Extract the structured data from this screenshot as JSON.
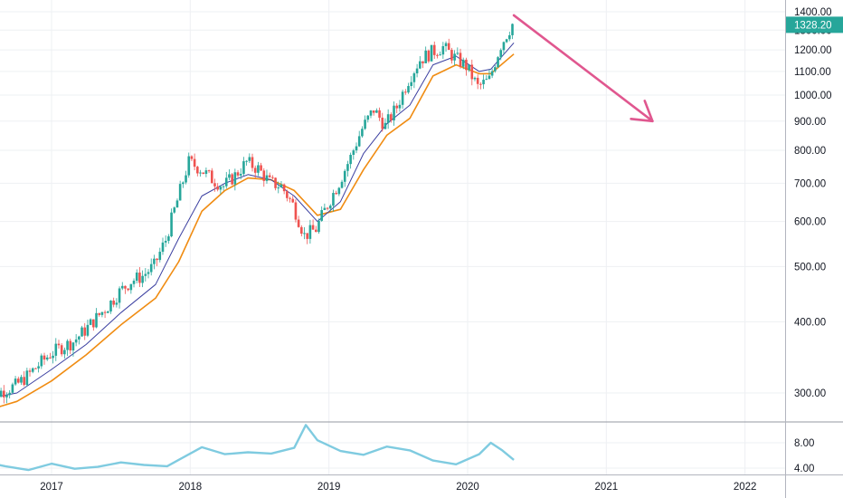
{
  "chart_data": {
    "type": "candlestick",
    "x_axis": {
      "labels": [
        "2017",
        "2018",
        "2019",
        "2020",
        "2021",
        "2022"
      ],
      "range": [
        "2016-07",
        "2022-06"
      ]
    },
    "price_axis": {
      "tick_labels": [
        "300.00",
        "400.00",
        "500.00",
        "600.00",
        "700.00",
        "800.00",
        "900.00",
        "1000.00",
        "1100.00",
        "1200.00",
        "1300.00",
        "1400.00"
      ],
      "ylim": [
        215,
        1435
      ],
      "last_price": "1328.20",
      "last_price_value": 1328.2,
      "scale": "log"
    },
    "indicator_axis": {
      "tick_labels": [
        "4.00",
        "8.00"
      ],
      "ylim": [
        3.2,
        11.2
      ]
    },
    "grid": true,
    "colors": {
      "up_candle": "#26a69a",
      "down_candle": "#ef5350",
      "fast_ma": "#3b3fa0",
      "slow_ma": "#f08c12",
      "indicator_line": "#7fcbe0",
      "arrow": "#e0578f",
      "last_price_badge": "#26a69a"
    },
    "projection_arrow": {
      "from": {
        "date": "2020-05",
        "price": 1380
      },
      "to": {
        "date": "2021-05",
        "price": 900
      }
    },
    "candle_closes": [
      {
        "date": "2016-07",
        "close": 300
      },
      {
        "date": "2016-08",
        "close": 297
      },
      {
        "date": "2016-09",
        "close": 302
      },
      {
        "date": "2016-10",
        "close": 308
      },
      {
        "date": "2016-11",
        "close": 320
      },
      {
        "date": "2016-12",
        "close": 335
      },
      {
        "date": "2017-01",
        "close": 350
      },
      {
        "date": "2017-02",
        "close": 360
      },
      {
        "date": "2017-03",
        "close": 368
      },
      {
        "date": "2017-04",
        "close": 385
      },
      {
        "date": "2017-05",
        "close": 405
      },
      {
        "date": "2017-06",
        "close": 425
      },
      {
        "date": "2017-07",
        "close": 450
      },
      {
        "date": "2017-08",
        "close": 470
      },
      {
        "date": "2017-09",
        "close": 480
      },
      {
        "date": "2017-10",
        "close": 500
      },
      {
        "date": "2017-11",
        "close": 555
      },
      {
        "date": "2017-12",
        "close": 650
      },
      {
        "date": "2018-01",
        "close": 760
      },
      {
        "date": "2018-02",
        "close": 740
      },
      {
        "date": "2018-03",
        "close": 710
      },
      {
        "date": "2018-04",
        "close": 690
      },
      {
        "date": "2018-05",
        "close": 720
      },
      {
        "date": "2018-06",
        "close": 760
      },
      {
        "date": "2018-07",
        "close": 740
      },
      {
        "date": "2018-08",
        "close": 700
      },
      {
        "date": "2018-09",
        "close": 690
      },
      {
        "date": "2018-10",
        "close": 640
      },
      {
        "date": "2018-11",
        "close": 565
      },
      {
        "date": "2018-12",
        "close": 580
      },
      {
        "date": "2019-01",
        "close": 640
      },
      {
        "date": "2019-02",
        "close": 700
      },
      {
        "date": "2019-03",
        "close": 775
      },
      {
        "date": "2019-04",
        "close": 870
      },
      {
        "date": "2019-05",
        "close": 940
      },
      {
        "date": "2019-06",
        "close": 880
      },
      {
        "date": "2019-07",
        "close": 950
      },
      {
        "date": "2019-08",
        "close": 1060
      },
      {
        "date": "2019-09",
        "close": 1150
      },
      {
        "date": "2019-10",
        "close": 1185
      },
      {
        "date": "2019-11",
        "close": 1210
      },
      {
        "date": "2019-12",
        "close": 1160
      },
      {
        "date": "2020-01",
        "close": 1120
      },
      {
        "date": "2020-02",
        "close": 1030
      },
      {
        "date": "2020-03",
        "close": 1060
      },
      {
        "date": "2020-04",
        "close": 1220
      },
      {
        "date": "2020-05",
        "close": 1328
      }
    ],
    "fast_ma": [
      {
        "date": "2016-07",
        "value": 292
      },
      {
        "date": "2016-10",
        "value": 300
      },
      {
        "date": "2017-01",
        "value": 330
      },
      {
        "date": "2017-04",
        "value": 365
      },
      {
        "date": "2017-07",
        "value": 415
      },
      {
        "date": "2017-10",
        "value": 465
      },
      {
        "date": "2017-12",
        "value": 560
      },
      {
        "date": "2018-02",
        "value": 665
      },
      {
        "date": "2018-04",
        "value": 700
      },
      {
        "date": "2018-06",
        "value": 725
      },
      {
        "date": "2018-08",
        "value": 710
      },
      {
        "date": "2018-10",
        "value": 665
      },
      {
        "date": "2018-12",
        "value": 600
      },
      {
        "date": "2019-02",
        "value": 650
      },
      {
        "date": "2019-04",
        "value": 790
      },
      {
        "date": "2019-06",
        "value": 890
      },
      {
        "date": "2019-08",
        "value": 960
      },
      {
        "date": "2019-10",
        "value": 1130
      },
      {
        "date": "2019-12",
        "value": 1170
      },
      {
        "date": "2020-02",
        "value": 1100
      },
      {
        "date": "2020-03",
        "value": 1110
      },
      {
        "date": "2020-05",
        "value": 1235
      }
    ],
    "slow_ma": [
      {
        "date": "2016-07",
        "value": 278
      },
      {
        "date": "2016-10",
        "value": 290
      },
      {
        "date": "2017-01",
        "value": 315
      },
      {
        "date": "2017-04",
        "value": 350
      },
      {
        "date": "2017-07",
        "value": 395
      },
      {
        "date": "2017-10",
        "value": 440
      },
      {
        "date": "2017-12",
        "value": 510
      },
      {
        "date": "2018-02",
        "value": 625
      },
      {
        "date": "2018-04",
        "value": 680
      },
      {
        "date": "2018-06",
        "value": 715
      },
      {
        "date": "2018-08",
        "value": 710
      },
      {
        "date": "2018-10",
        "value": 680
      },
      {
        "date": "2018-12",
        "value": 615
      },
      {
        "date": "2019-02",
        "value": 630
      },
      {
        "date": "2019-04",
        "value": 740
      },
      {
        "date": "2019-06",
        "value": 850
      },
      {
        "date": "2019-08",
        "value": 910
      },
      {
        "date": "2019-10",
        "value": 1080
      },
      {
        "date": "2019-12",
        "value": 1130
      },
      {
        "date": "2020-02",
        "value": 1090
      },
      {
        "date": "2020-03",
        "value": 1090
      },
      {
        "date": "2020-05",
        "value": 1180
      }
    ],
    "indicator": [
      {
        "date": "2016-07",
        "value": 5.0
      },
      {
        "date": "2016-09",
        "value": 4.3
      },
      {
        "date": "2016-11",
        "value": 3.7
      },
      {
        "date": "2017-01",
        "value": 4.7
      },
      {
        "date": "2017-03",
        "value": 3.9
      },
      {
        "date": "2017-05",
        "value": 4.2
      },
      {
        "date": "2017-07",
        "value": 4.9
      },
      {
        "date": "2017-09",
        "value": 4.5
      },
      {
        "date": "2017-11",
        "value": 4.3
      },
      {
        "date": "2018-01",
        "value": 6.3
      },
      {
        "date": "2018-02",
        "value": 7.3
      },
      {
        "date": "2018-04",
        "value": 6.2
      },
      {
        "date": "2018-06",
        "value": 6.5
      },
      {
        "date": "2018-08",
        "value": 6.3
      },
      {
        "date": "2018-10",
        "value": 7.2
      },
      {
        "date": "2018-11",
        "value": 10.8
      },
      {
        "date": "2018-12",
        "value": 8.4
      },
      {
        "date": "2019-02",
        "value": 6.7
      },
      {
        "date": "2019-04",
        "value": 6.1
      },
      {
        "date": "2019-06",
        "value": 7.4
      },
      {
        "date": "2019-08",
        "value": 6.8
      },
      {
        "date": "2019-10",
        "value": 5.2
      },
      {
        "date": "2019-12",
        "value": 4.6
      },
      {
        "date": "2020-02",
        "value": 6.2
      },
      {
        "date": "2020-03",
        "value": 8.0
      },
      {
        "date": "2020-04",
        "value": 6.8
      },
      {
        "date": "2020-05",
        "value": 5.3
      }
    ]
  }
}
